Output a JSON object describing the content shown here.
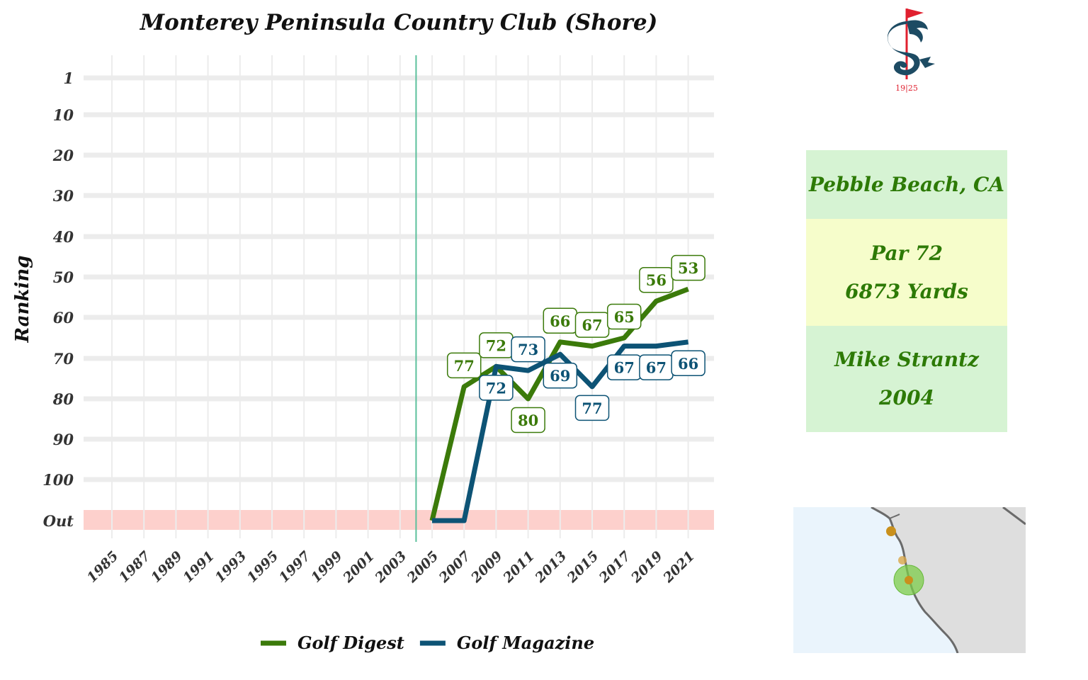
{
  "chart_data": {
    "type": "line",
    "title": "Monterey Peninsula Country Club (Shore)",
    "ylabel": "Ranking",
    "xlabel": "",
    "y_ticks": [
      "1",
      "10",
      "20",
      "30",
      "40",
      "50",
      "60",
      "70",
      "80",
      "90",
      "100",
      "Out"
    ],
    "x_ticks": [
      "1985",
      "1987",
      "1989",
      "1991",
      "1993",
      "1995",
      "1997",
      "1999",
      "2001",
      "2003",
      "2005",
      "2007",
      "2009",
      "2011",
      "2013",
      "2015",
      "2017",
      "2019",
      "2021"
    ],
    "xlim": [
      1984,
      2022
    ],
    "ylim": [
      1,
      110
    ],
    "out_value": 110,
    "reference_line_year": 2004,
    "grid": true,
    "legend_position": "bottom",
    "series": [
      {
        "name": "Golf Digest",
        "color": "#3b7a0a",
        "x": [
          2005,
          2007,
          2009,
          2011,
          2013,
          2015,
          2017,
          2019,
          2021
        ],
        "y": [
          110,
          77,
          72,
          80,
          66,
          67,
          65,
          56,
          53
        ],
        "labels": [
          "",
          "77",
          "72",
          "80",
          "66",
          "67",
          "65",
          "56",
          "53"
        ],
        "label_pos": [
          "",
          "above",
          "above",
          "below",
          "above",
          "above",
          "above",
          "above",
          "above"
        ]
      },
      {
        "name": "Golf Magazine",
        "color": "#0d5375",
        "x": [
          2005,
          2007,
          2009,
          2011,
          2013,
          2015,
          2017,
          2019,
          2021
        ],
        "y": [
          110,
          110,
          72,
          73,
          69,
          77,
          67,
          67,
          66
        ],
        "labels": [
          "",
          "",
          "72",
          "73",
          "69",
          "77",
          "67",
          "67",
          "66"
        ],
        "label_pos": [
          "",
          "",
          "below",
          "above",
          "below",
          "below",
          "below",
          "below",
          "below"
        ]
      }
    ]
  },
  "info": {
    "location": "Pebble Beach, CA",
    "par": "Par 72",
    "yards": "6873 Yards",
    "architect": "Mike Strantz",
    "year": "2004",
    "colors": {
      "location_bg": "#d6f3d3",
      "par_bg": "#f6fdcb",
      "architect_bg": "#d6f3d3",
      "text": "#2d7a06"
    }
  },
  "logo": {
    "icon": "dragon-flag-logo-icon",
    "year_text": "19|25",
    "color": "#1d4b63",
    "flag_color": "#e0202f"
  },
  "map": {
    "icon": "california-coast-map-icon",
    "water_color": "#eaf4fc",
    "land_color": "#dedede"
  }
}
